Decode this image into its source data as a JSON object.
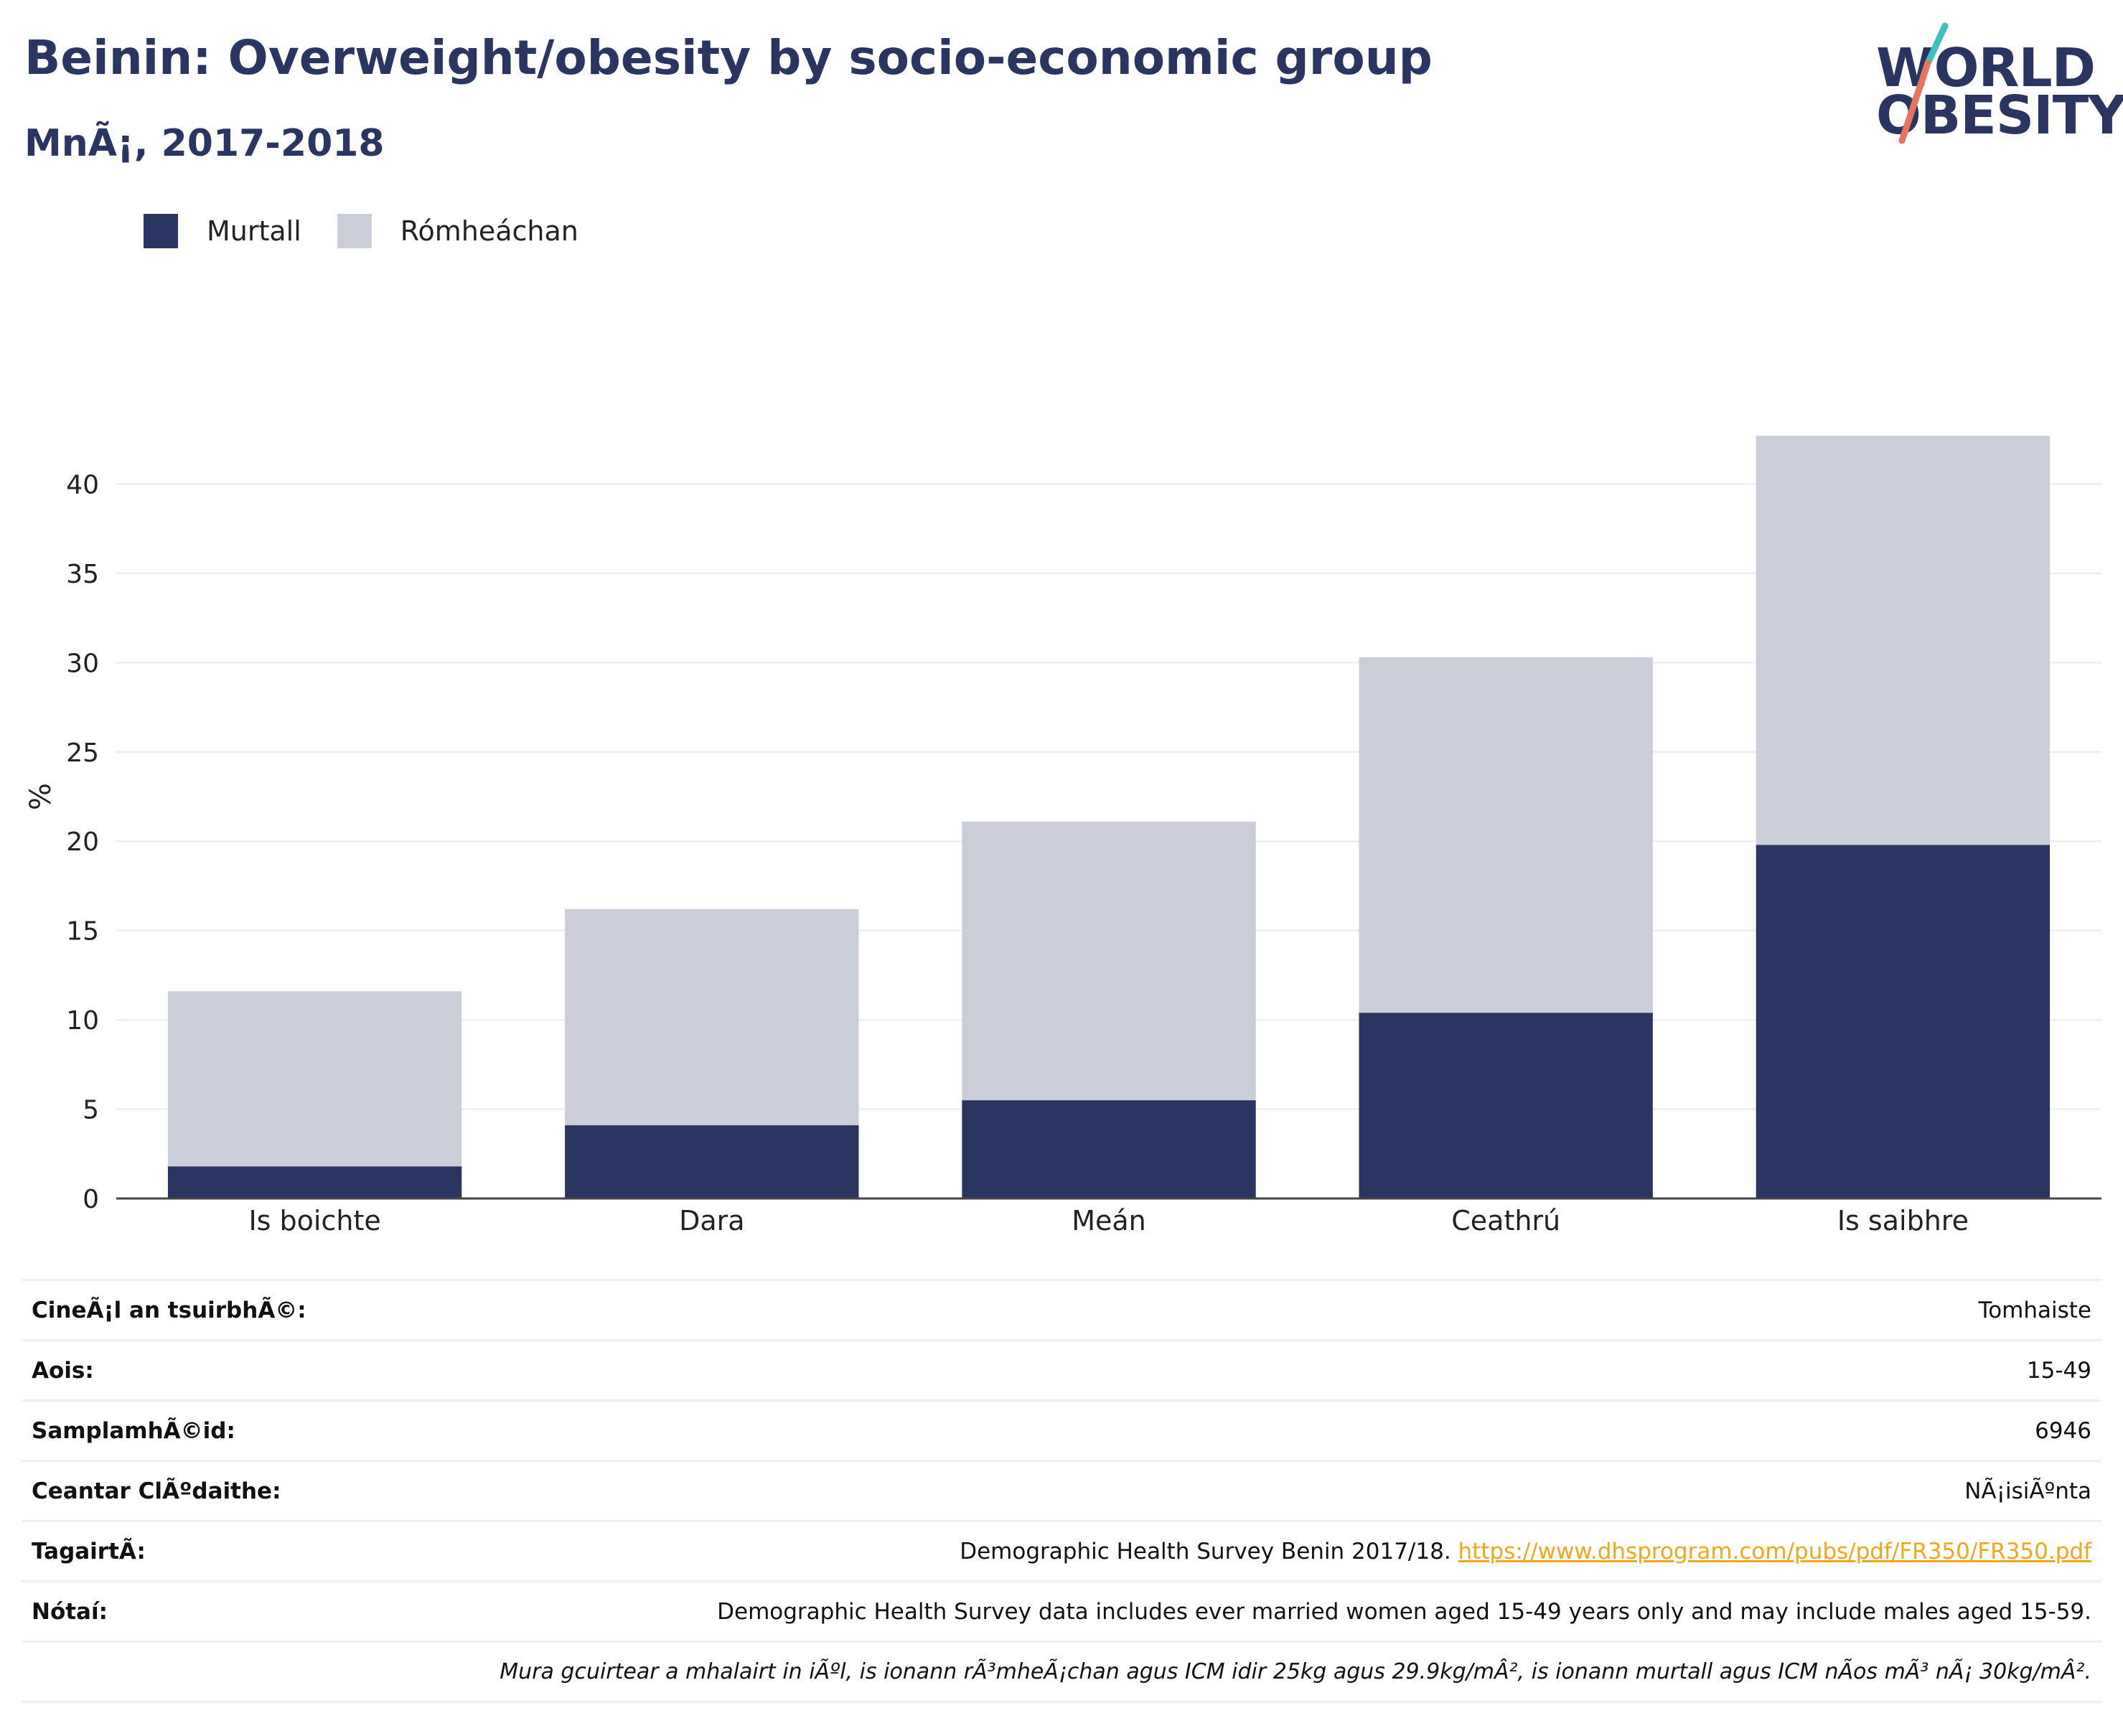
{
  "header": {
    "title": "Beinin: Overweight/obesity by socio-economic group",
    "subtitle": "MnÃ¡, 2017-2018"
  },
  "logo": {
    "line1": "WORLD",
    "line2": "OBESITY"
  },
  "legend": [
    {
      "label": "Murtall",
      "color": "#2a3561"
    },
    {
      "label": "Rómheáchan",
      "color": "#cbcdd8"
    }
  ],
  "colors": {
    "obese": "#2a3561",
    "overweight": "#cbcdd8",
    "accent_teal": "#3bbfbf",
    "accent_coral": "#e8735e",
    "link": "#f0a81a"
  },
  "chart_data": {
    "type": "bar",
    "stacked": true,
    "categories": [
      "Is boichte",
      "Dara",
      "Meán",
      "Ceathrú",
      "Is saibhre"
    ],
    "series": [
      {
        "name": "Murtall",
        "values": [
          1.8,
          4.1,
          5.5,
          10.4,
          19.8
        ]
      },
      {
        "name": "Rómheáchan",
        "values": [
          9.8,
          12.1,
          15.6,
          19.9,
          22.9
        ]
      }
    ],
    "ylabel": "%",
    "xlabel": "",
    "ylim": [
      0,
      45
    ],
    "yticks": [
      0,
      5,
      10,
      15,
      20,
      25,
      30,
      35,
      40
    ],
    "grid": true,
    "legend_position": "top-left"
  },
  "info": {
    "survey_type_label": "CineÃ¡l an tsuirbhÃ©:",
    "survey_type_value": "Tomhaiste",
    "age_label": "Aois:",
    "age_value": "15-49",
    "sample_label": "SamplamhÃ©id:",
    "sample_value": "6946",
    "area_label": "Ceantar ClÃºdaithe:",
    "area_value": "NÃ¡isiÃºnta",
    "reference_label": "TagairtÃ:",
    "reference_text": "Demographic Health Survey Benin 2017/18.",
    "reference_url": "https://www.dhsprogram.com/pubs/pdf/FR350/FR350.pdf",
    "notes_label": "Nótaí:",
    "notes_text": "Demographic Health Survey data includes ever married women aged 15-49 years only and may include males aged 15-59.",
    "notes_italic": "Mura gcuirtear a mhalairt in iÃºl, is ionann rÃ³mheÃ¡chan agus ICM idir 25kg agus 29.9kg/mÂ², is ionann murtall agus ICM nÃ­os mÃ³ nÃ¡ 30kg/mÂ²."
  }
}
